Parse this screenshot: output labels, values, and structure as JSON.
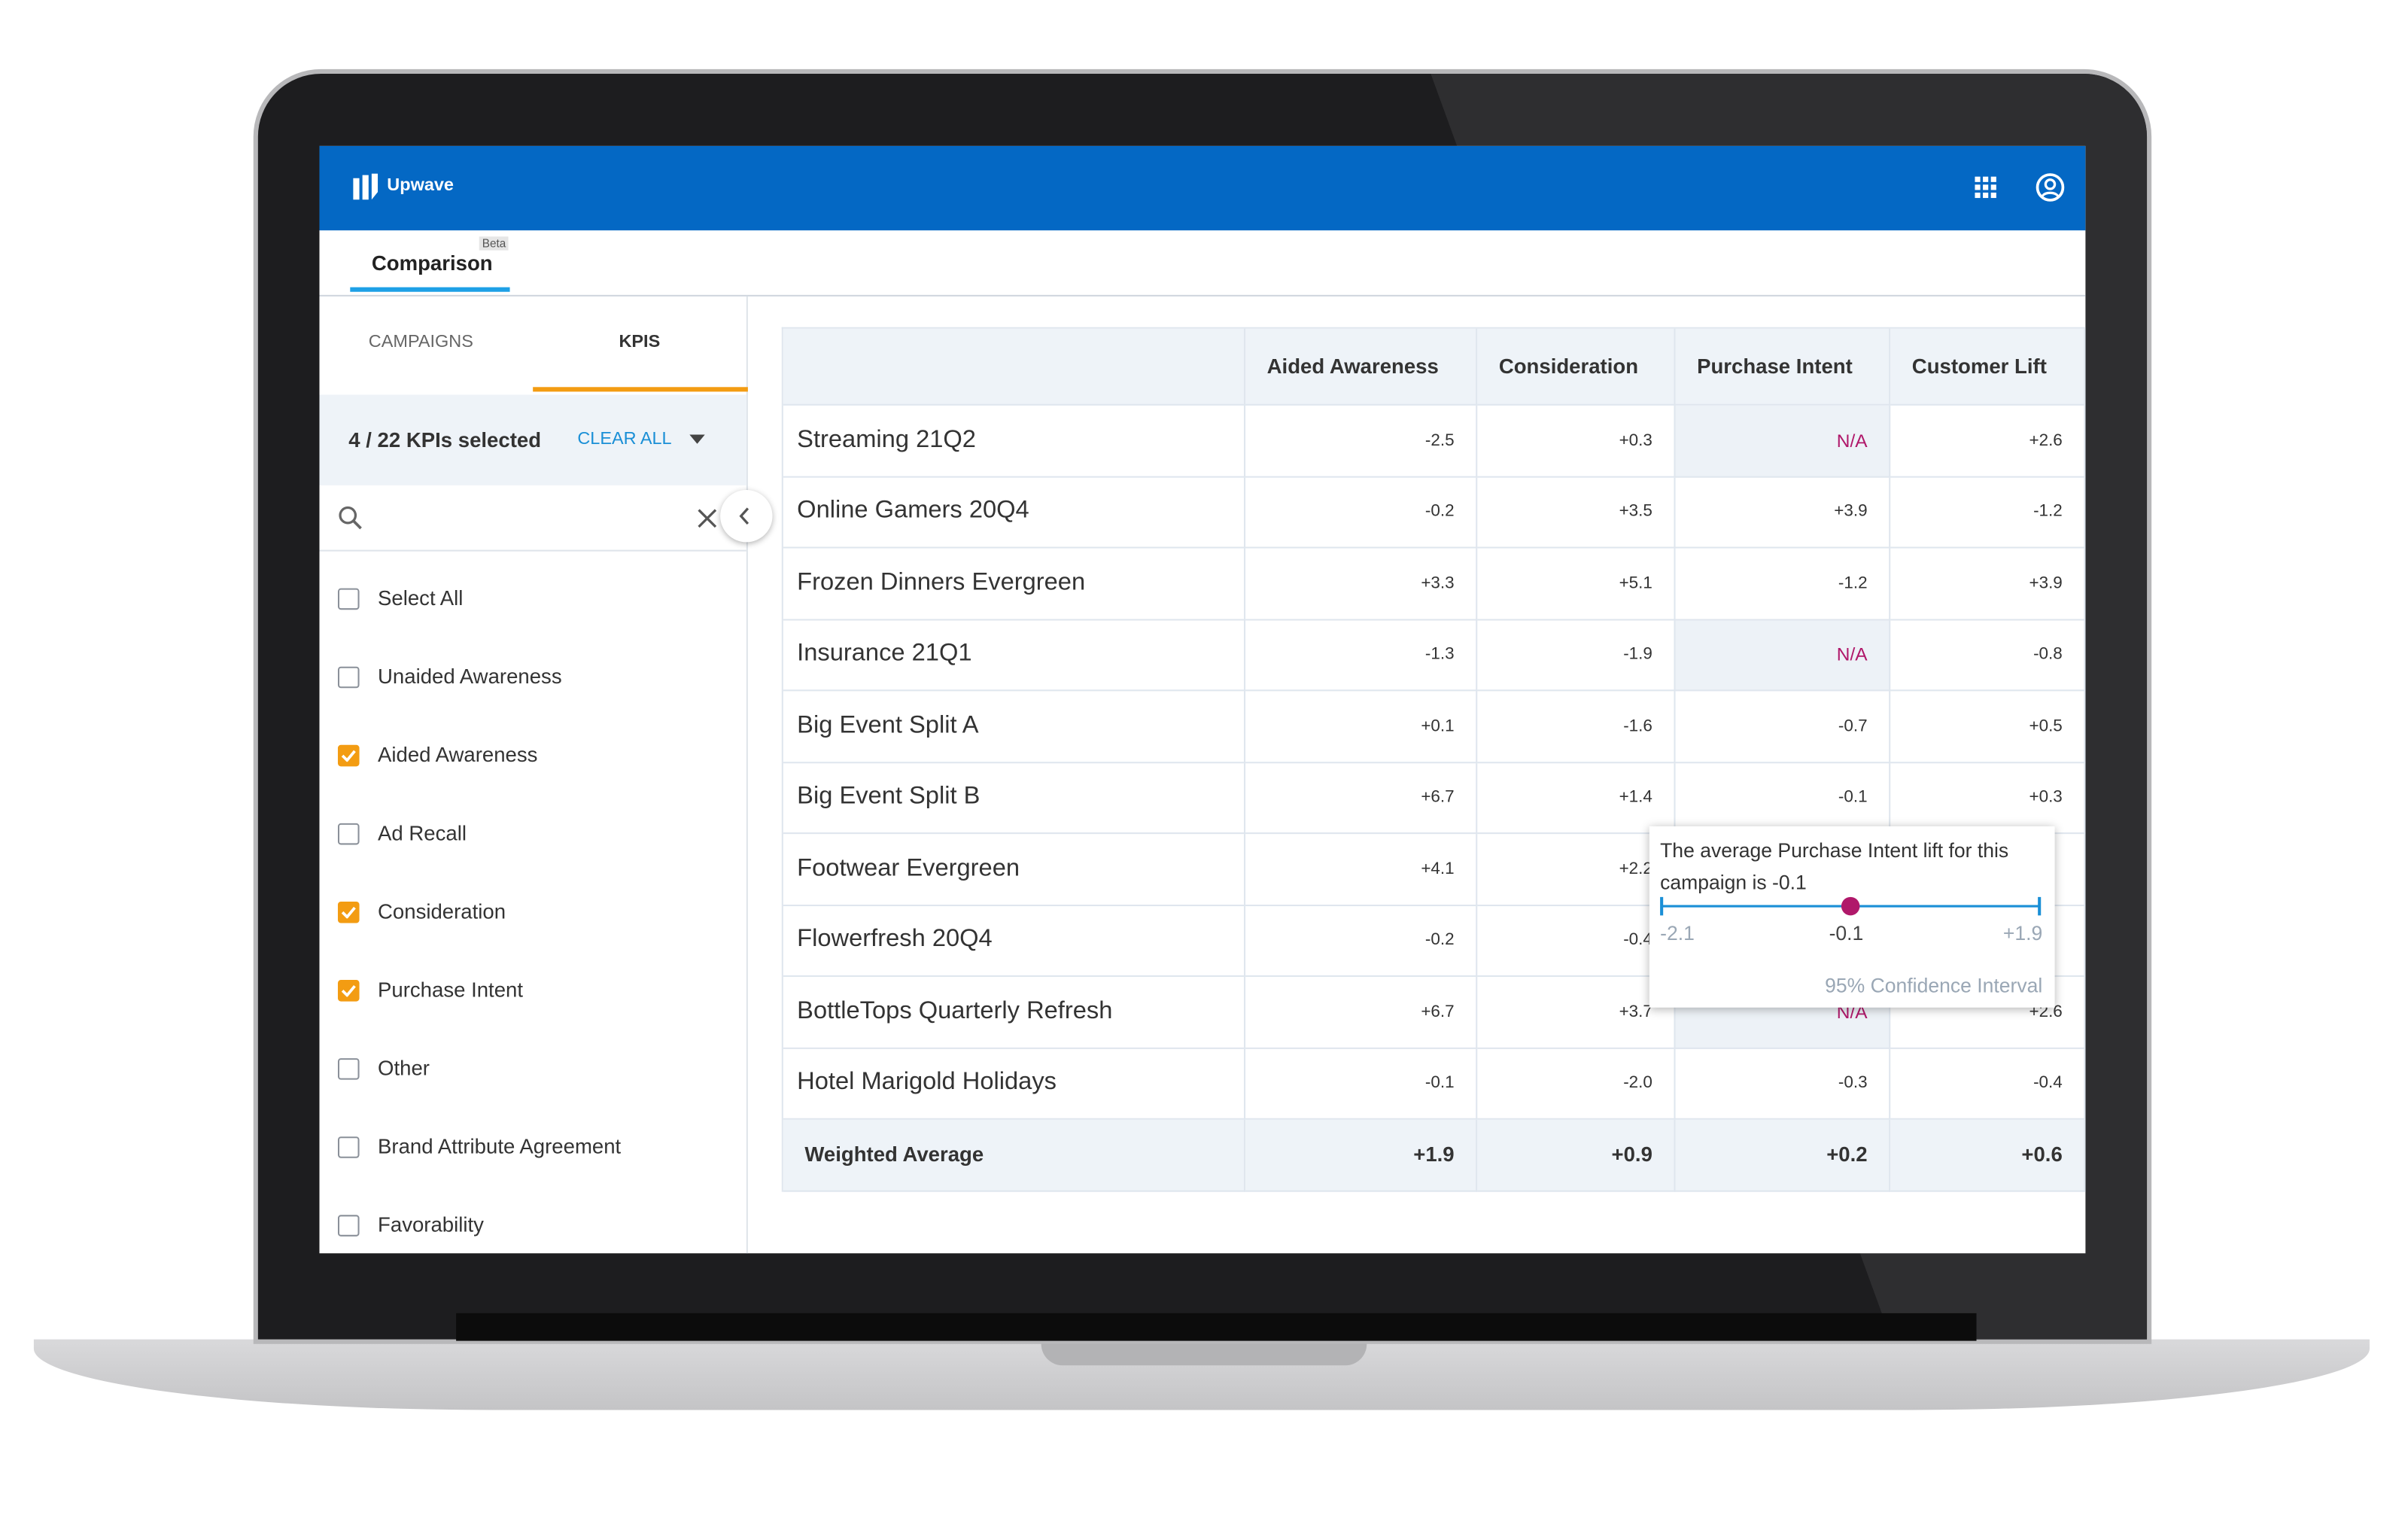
{
  "header": {
    "brand": "Upwave"
  },
  "tabs": {
    "main": "Comparison",
    "badge": "Beta"
  },
  "sidebar": {
    "tabs": [
      "CAMPAIGNS",
      "KPIS"
    ],
    "selection": "4 / 22 KPIs selected",
    "clear": "CLEAR ALL",
    "items": [
      {
        "label": "Select All",
        "checked": false
      },
      {
        "label": "Unaided Awareness",
        "checked": false
      },
      {
        "label": "Aided Awareness",
        "checked": true
      },
      {
        "label": "Ad Recall",
        "checked": false
      },
      {
        "label": "Consideration",
        "checked": true
      },
      {
        "label": "Purchase Intent",
        "checked": true
      },
      {
        "label": "Other",
        "checked": false
      },
      {
        "label": "Brand Attribute Agreement",
        "checked": false
      },
      {
        "label": "Favorability",
        "checked": false
      }
    ]
  },
  "table": {
    "columns": [
      "Aided Awareness",
      "Consideration",
      "Purchase Intent",
      "Customer Lift"
    ],
    "rows": [
      {
        "name": "Streaming 21Q2",
        "values": [
          "-2.5",
          "+0.3",
          "N/A",
          "+2.6"
        ]
      },
      {
        "name": "Online Gamers 20Q4",
        "values": [
          "-0.2",
          "+3.5",
          "+3.9",
          "-1.2"
        ]
      },
      {
        "name": "Frozen Dinners Evergreen",
        "values": [
          "+3.3",
          "+5.1",
          "-1.2",
          "+3.9"
        ]
      },
      {
        "name": "Insurance 21Q1",
        "values": [
          "-1.3",
          "-1.9",
          "N/A",
          "-0.8"
        ]
      },
      {
        "name": "Big Event Split A",
        "values": [
          "+0.1",
          "-1.6",
          "-0.7",
          "+0.5"
        ]
      },
      {
        "name": "Big Event Split B",
        "values": [
          "+6.7",
          "+1.4",
          "-0.1",
          "+0.3"
        ]
      },
      {
        "name": "Footwear Evergreen",
        "values": [
          "+4.1",
          "+2.2",
          null,
          null
        ]
      },
      {
        "name": "Flowerfresh 20Q4",
        "values": [
          "-0.2",
          "-0.4",
          null,
          null
        ]
      },
      {
        "name": "BottleTops Quarterly Refresh",
        "values": [
          "+6.7",
          "+3.7",
          "N/A",
          "+2.6"
        ]
      },
      {
        "name": "Hotel Marigold Holidays",
        "values": [
          "-0.1",
          "-2.0",
          "-0.3",
          "-0.4"
        ]
      }
    ],
    "footer": {
      "name": "Weighted Average",
      "values": [
        "+1.9",
        "+0.9",
        "+0.2",
        "+0.6"
      ]
    }
  },
  "tooltip": {
    "text": "The average Purchase Intent lift for this campaign is -0.1",
    "low": "-2.1",
    "mid": "-0.1",
    "high": "+1.9",
    "caption": "95% Confidence Interval"
  }
}
